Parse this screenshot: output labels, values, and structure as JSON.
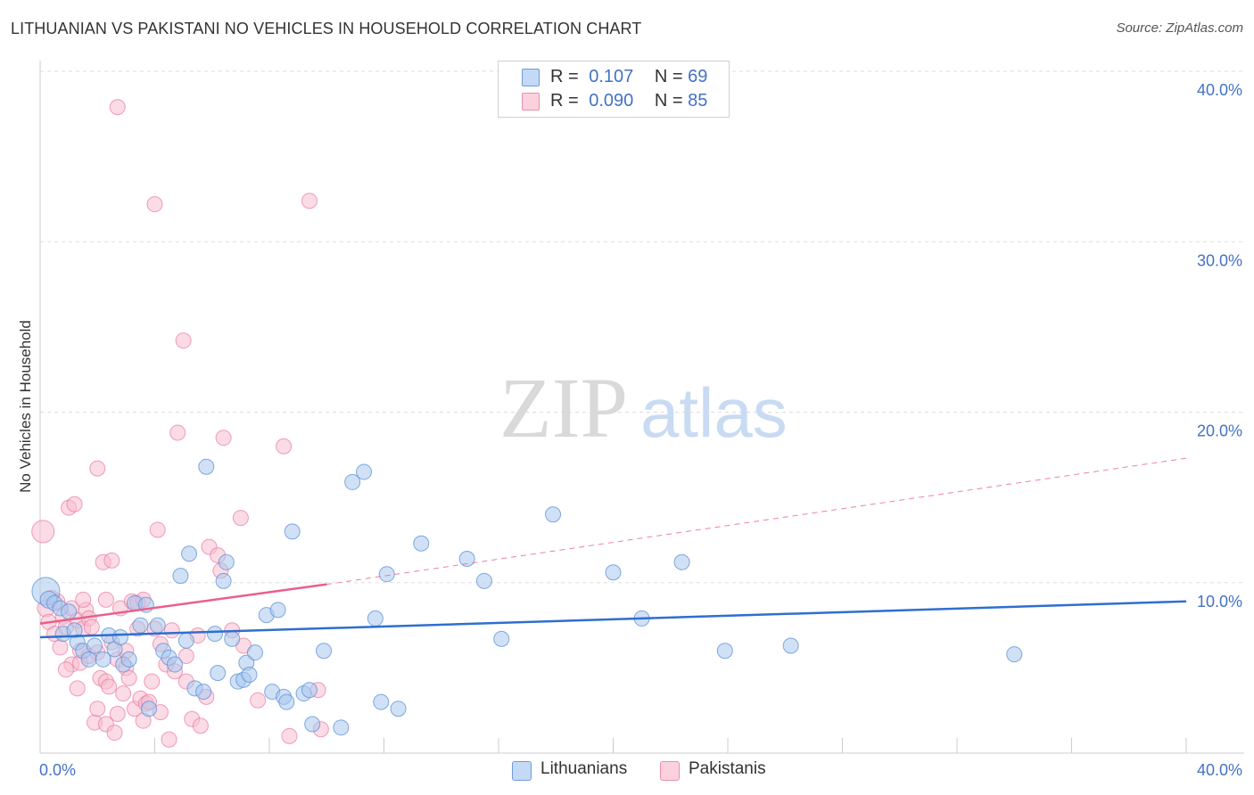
{
  "title": "LITHUANIAN VS PAKISTANI NO VEHICLES IN HOUSEHOLD CORRELATION CHART",
  "source": "Source: ZipAtlas.com",
  "watermark": {
    "zip": "ZIP",
    "atlas": "atlas"
  },
  "legend": {
    "r_label": "R =",
    "n_label": "N =",
    "rows": [
      {
        "r": "0.107",
        "n": "69",
        "color": "#9dbfe9"
      },
      {
        "r": "0.090",
        "n": "85",
        "color": "#f5afc5"
      }
    ]
  },
  "bottom_legend": [
    {
      "label": "Lithuanians",
      "color": "#9dbfe9"
    },
    {
      "label": "Pakistanis",
      "color": "#f5afc5"
    }
  ],
  "colors": {
    "blue_fill": "#a9c8ef",
    "blue_stroke": "#5a8fd6",
    "blue_line": "#2e6fcf",
    "pink_fill": "#f7bed0",
    "pink_stroke": "#e8789c",
    "pink_line": "#e8608a",
    "axis_text": "#4472c4",
    "grid": "#dddddd"
  },
  "chart_data": {
    "type": "scatter",
    "title": "LITHUANIAN VS PAKISTANI NO VEHICLES IN HOUSEHOLD CORRELATION CHART",
    "xlabel": "",
    "ylabel": "No Vehicles in Household",
    "xlim": [
      0,
      40
    ],
    "ylim": [
      0,
      40
    ],
    "x_tick_labels": [
      "0.0%",
      "40.0%"
    ],
    "y_tick_labels": [
      "10.0%",
      "20.0%",
      "30.0%",
      "40.0%"
    ],
    "y_ticks": [
      10,
      20,
      30,
      40
    ],
    "series": [
      {
        "name": "Lithuanians",
        "r": 0.107,
        "n": 69,
        "trend": {
          "x0": 0,
          "y0": 6.8,
          "x1": 40,
          "y1": 8.9,
          "style": "solid"
        },
        "points": [
          [
            0.2,
            9.5,
            14
          ],
          [
            0.3,
            9.0,
            8
          ],
          [
            0.5,
            8.8,
            7
          ],
          [
            0.7,
            8.5,
            7
          ],
          [
            0.8,
            7.0,
            7
          ],
          [
            1.0,
            8.3,
            7
          ],
          [
            1.2,
            7.2,
            7
          ],
          [
            1.3,
            6.5,
            7
          ],
          [
            1.5,
            6.0,
            7
          ],
          [
            1.7,
            5.5,
            7
          ],
          [
            1.9,
            6.3,
            7
          ],
          [
            2.2,
            5.5,
            7
          ],
          [
            2.4,
            6.9,
            7
          ],
          [
            2.6,
            6.1,
            7
          ],
          [
            2.8,
            6.8,
            7
          ],
          [
            2.9,
            5.2,
            7
          ],
          [
            3.1,
            5.5,
            7
          ],
          [
            3.3,
            8.8,
            7
          ],
          [
            3.5,
            7.5,
            7
          ],
          [
            3.7,
            8.7,
            7
          ],
          [
            3.8,
            2.6,
            7
          ],
          [
            4.1,
            7.5,
            7
          ],
          [
            4.3,
            6.0,
            7
          ],
          [
            4.5,
            5.6,
            7
          ],
          [
            4.7,
            5.2,
            7
          ],
          [
            4.9,
            10.4,
            7
          ],
          [
            5.1,
            6.6,
            7
          ],
          [
            5.2,
            11.7,
            7
          ],
          [
            5.4,
            3.8,
            7
          ],
          [
            5.7,
            3.6,
            7
          ],
          [
            5.8,
            16.8,
            7
          ],
          [
            6.1,
            7.0,
            7
          ],
          [
            6.2,
            4.7,
            7
          ],
          [
            6.4,
            10.1,
            7
          ],
          [
            6.5,
            11.2,
            7
          ],
          [
            6.7,
            6.7,
            7
          ],
          [
            6.9,
            4.2,
            7
          ],
          [
            7.1,
            4.3,
            7
          ],
          [
            7.2,
            5.3,
            7
          ],
          [
            7.3,
            4.6,
            7
          ],
          [
            7.5,
            5.9,
            7
          ],
          [
            7.9,
            8.1,
            7
          ],
          [
            8.1,
            3.6,
            7
          ],
          [
            8.3,
            8.4,
            7
          ],
          [
            8.5,
            3.3,
            7
          ],
          [
            8.6,
            3.0,
            7
          ],
          [
            8.8,
            13.0,
            7
          ],
          [
            9.2,
            3.5,
            7
          ],
          [
            9.4,
            3.7,
            7
          ],
          [
            9.5,
            1.7,
            7
          ],
          [
            9.9,
            6.0,
            7
          ],
          [
            10.5,
            1.5,
            7
          ],
          [
            10.9,
            15.9,
            7
          ],
          [
            11.3,
            16.5,
            7
          ],
          [
            11.7,
            7.9,
            7
          ],
          [
            11.9,
            3.0,
            7
          ],
          [
            12.1,
            10.5,
            7
          ],
          [
            12.5,
            2.6,
            7
          ],
          [
            13.3,
            12.3,
            7
          ],
          [
            14.9,
            11.4,
            7
          ],
          [
            15.5,
            10.1,
            7
          ],
          [
            16.1,
            6.7,
            7
          ],
          [
            17.9,
            14.0,
            7
          ],
          [
            20.0,
            10.6,
            7
          ],
          [
            21.0,
            7.9,
            7
          ],
          [
            22.4,
            11.2,
            7
          ],
          [
            23.9,
            6.0,
            7
          ],
          [
            26.2,
            6.3,
            7
          ],
          [
            34.0,
            5.8,
            7
          ]
        ]
      },
      {
        "name": "Pakistanis",
        "r": 0.09,
        "n": 85,
        "trend": {
          "x0": 0,
          "y0": 7.6,
          "x1": 10,
          "y1": 9.9,
          "style": "solid",
          "ext_x1": 40,
          "ext_y1": 17.3,
          "ext_style": "dashed"
        },
        "points": [
          [
            0.1,
            13.0,
            11
          ],
          [
            0.2,
            8.5,
            8
          ],
          [
            0.3,
            7.7,
            7
          ],
          [
            0.4,
            9.1,
            7
          ],
          [
            0.5,
            7.0,
            7
          ],
          [
            0.6,
            8.9,
            7
          ],
          [
            0.7,
            6.2,
            7
          ],
          [
            0.8,
            8.0,
            7
          ],
          [
            0.9,
            7.4,
            7
          ],
          [
            1.0,
            14.4,
            7
          ],
          [
            1.1,
            5.2,
            7
          ],
          [
            1.1,
            8.5,
            7
          ],
          [
            1.2,
            14.6,
            7
          ],
          [
            1.3,
            7.8,
            7
          ],
          [
            1.4,
            6.0,
            7
          ],
          [
            1.4,
            5.3,
            7
          ],
          [
            1.5,
            7.3,
            7
          ],
          [
            1.6,
            8.4,
            7
          ],
          [
            1.7,
            5.7,
            7
          ],
          [
            1.7,
            7.9,
            7
          ],
          [
            1.8,
            7.4,
            7
          ],
          [
            1.9,
            1.8,
            7
          ],
          [
            2.0,
            16.7,
            7
          ],
          [
            2.0,
            5.9,
            7
          ],
          [
            2.1,
            4.4,
            7
          ],
          [
            2.2,
            11.2,
            7
          ],
          [
            2.3,
            9.0,
            7
          ],
          [
            2.3,
            4.2,
            7
          ],
          [
            2.3,
            1.7,
            7
          ],
          [
            2.4,
            3.9,
            7
          ],
          [
            2.5,
            11.3,
            7
          ],
          [
            2.5,
            6.5,
            7
          ],
          [
            2.6,
            1.2,
            7
          ],
          [
            2.7,
            5.5,
            7
          ],
          [
            2.7,
            2.3,
            7
          ],
          [
            2.8,
            8.5,
            7
          ],
          [
            2.9,
            3.5,
            7
          ],
          [
            3.0,
            6.0,
            7
          ],
          [
            3.0,
            5.0,
            7
          ],
          [
            3.1,
            4.4,
            7
          ],
          [
            3.2,
            8.9,
            7
          ],
          [
            3.3,
            2.6,
            7
          ],
          [
            3.4,
            7.3,
            7
          ],
          [
            3.4,
            8.8,
            7
          ],
          [
            3.5,
            3.2,
            7
          ],
          [
            3.6,
            9.0,
            7
          ],
          [
            3.7,
            2.9,
            7
          ],
          [
            3.8,
            3.0,
            7
          ],
          [
            3.9,
            4.2,
            7
          ],
          [
            4.0,
            7.3,
            7
          ],
          [
            4.0,
            32.2,
            7
          ],
          [
            4.1,
            13.1,
            7
          ],
          [
            4.2,
            2.4,
            7
          ],
          [
            4.2,
            6.4,
            7
          ],
          [
            4.4,
            5.2,
            7
          ],
          [
            4.5,
            0.8,
            7
          ],
          [
            4.6,
            7.2,
            7
          ],
          [
            4.8,
            18.8,
            7
          ],
          [
            5.0,
            24.2,
            7
          ],
          [
            5.1,
            4.2,
            7
          ],
          [
            5.1,
            5.7,
            7
          ],
          [
            5.3,
            2.0,
            7
          ],
          [
            5.6,
            1.6,
            7
          ],
          [
            5.8,
            3.3,
            7
          ],
          [
            5.9,
            12.1,
            7
          ],
          [
            6.2,
            11.6,
            7
          ],
          [
            6.3,
            10.7,
            7
          ],
          [
            6.4,
            18.5,
            7
          ],
          [
            6.7,
            7.2,
            7
          ],
          [
            7.0,
            13.8,
            7
          ],
          [
            7.1,
            6.3,
            7
          ],
          [
            8.5,
            18.0,
            7
          ],
          [
            8.7,
            1.0,
            7
          ],
          [
            9.4,
            32.4,
            7
          ],
          [
            9.7,
            3.7,
            7
          ],
          [
            9.8,
            1.4,
            7
          ],
          [
            2.7,
            37.9,
            7
          ],
          [
            1.3,
            3.8,
            7
          ],
          [
            0.9,
            4.9,
            7
          ],
          [
            1.5,
            9.0,
            7
          ],
          [
            2.0,
            2.6,
            7
          ],
          [
            3.6,
            1.9,
            7
          ],
          [
            4.7,
            4.8,
            7
          ],
          [
            5.5,
            6.9,
            7
          ],
          [
            7.6,
            3.1,
            7
          ]
        ]
      }
    ]
  }
}
